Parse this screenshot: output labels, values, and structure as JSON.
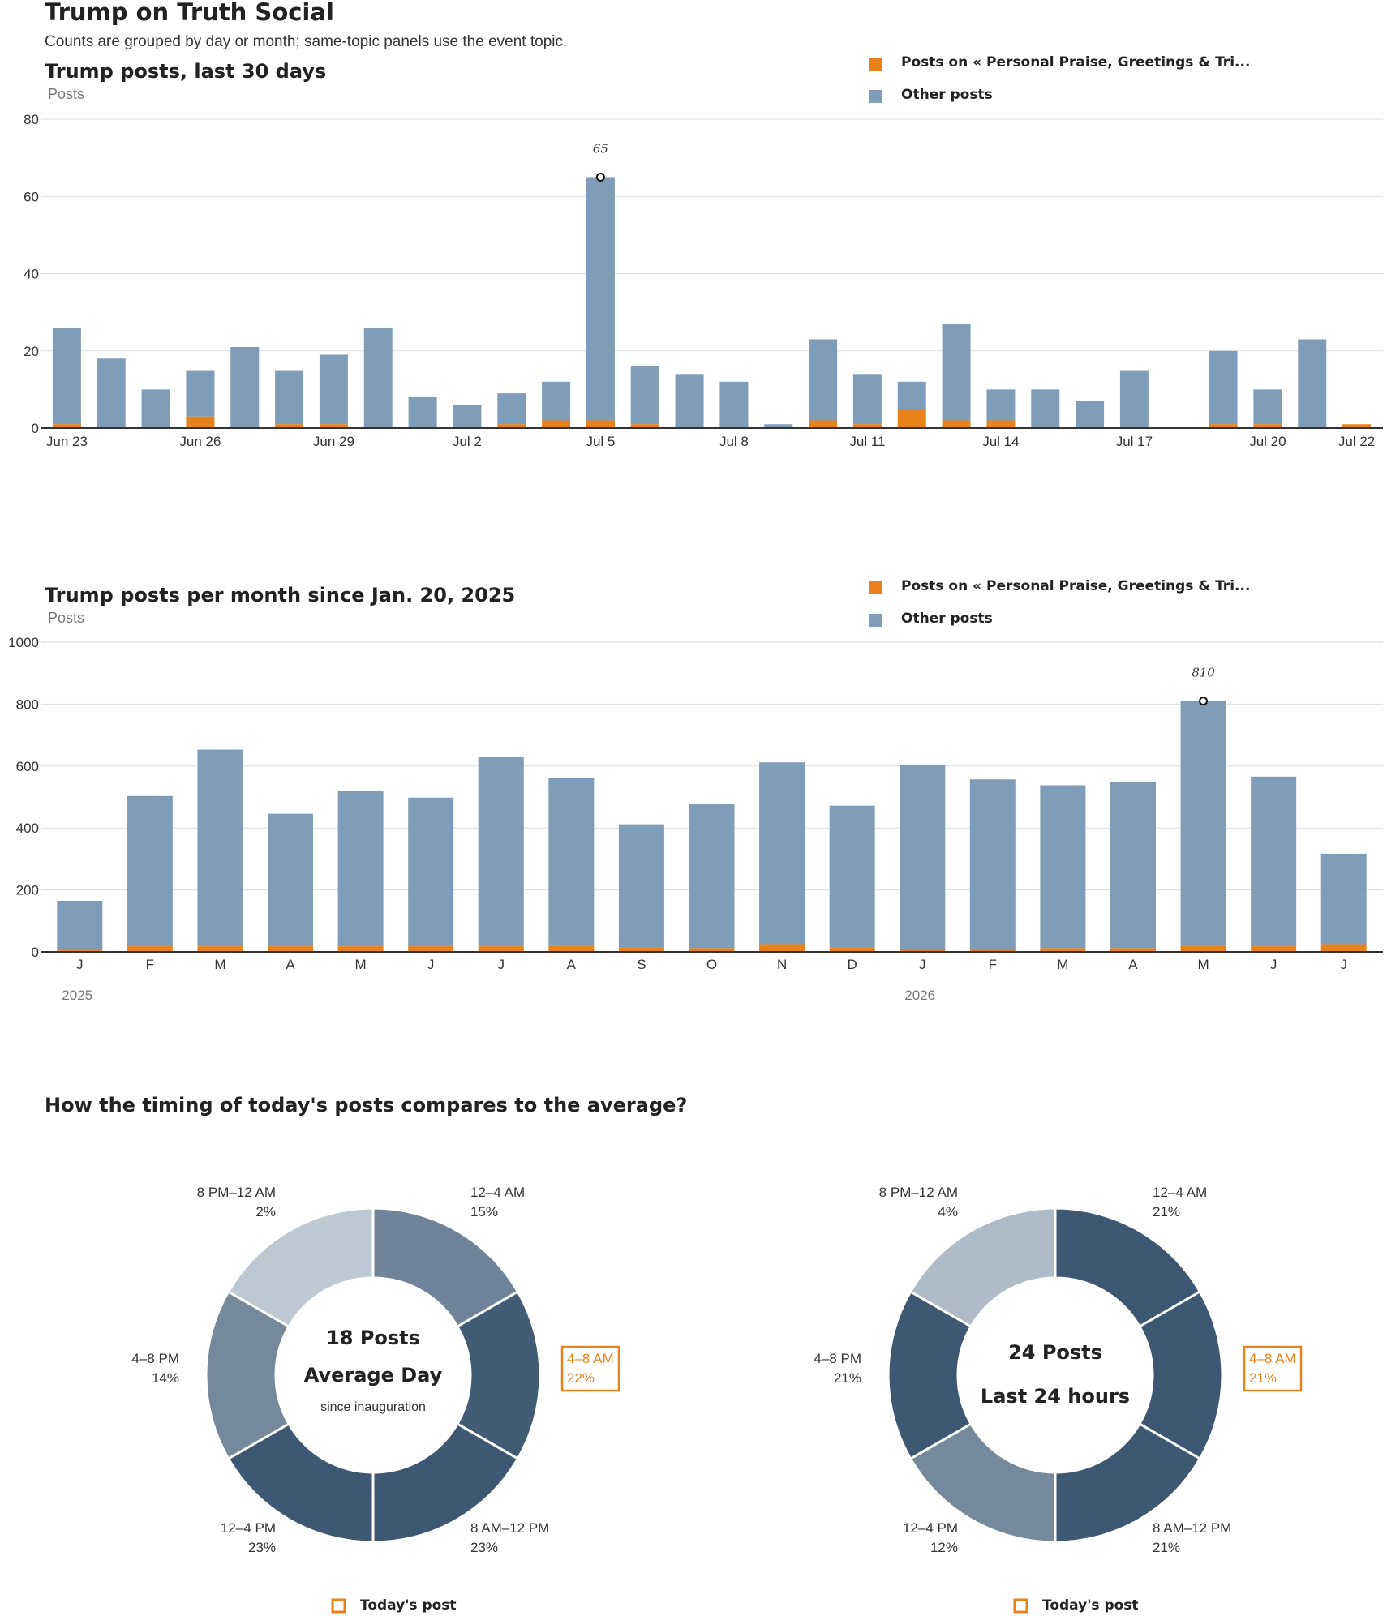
{
  "page": {
    "title": "Trump on Truth Social",
    "subtitle": "Counts are grouped by day or month; same-topic panels use the event topic."
  },
  "colors": {
    "topic": "#e8821b",
    "other": "#7f9db9",
    "text": "#222222",
    "highlight": "#e8821b"
  },
  "chart_data": [
    {
      "type": "bar",
      "stacked": true,
      "title": "Trump posts, last 30 days",
      "ylabel": "Posts",
      "ylim": [
        0,
        80
      ],
      "yticks": [
        0,
        20,
        40,
        60,
        80
      ],
      "grid": true,
      "legend": [
        "Posts on « Personal Praise, Greetings & Tri...",
        "Other posts"
      ],
      "legend_position": "top-right",
      "categories": [
        "Jun 23",
        "Jun 24",
        "Jun 25",
        "Jun 26",
        "Jun 27",
        "Jun 28",
        "Jun 29",
        "Jun 30",
        "Jul 1",
        "Jul 2",
        "Jul 3",
        "Jul 4",
        "Jul 5",
        "Jul 6",
        "Jul 7",
        "Jul 8",
        "Jul 9",
        "Jul 10",
        "Jul 11",
        "Jul 12",
        "Jul 13",
        "Jul 14",
        "Jul 15",
        "Jul 16",
        "Jul 17",
        "Jul 18",
        "Jul 19",
        "Jul 20",
        "Jul 21",
        "Jul 22"
      ],
      "xtick_labels": [
        {
          "index": 0,
          "label": "Jun 23"
        },
        {
          "index": 3,
          "label": "Jun 26"
        },
        {
          "index": 6,
          "label": "Jun 29"
        },
        {
          "index": 9,
          "label": "Jul 2"
        },
        {
          "index": 12,
          "label": "Jul 5"
        },
        {
          "index": 15,
          "label": "Jul 8"
        },
        {
          "index": 18,
          "label": "Jul 11"
        },
        {
          "index": 21,
          "label": "Jul 14"
        },
        {
          "index": 24,
          "label": "Jul 17"
        },
        {
          "index": 27,
          "label": "Jul 20"
        },
        {
          "index": 29,
          "label": "Jul 22"
        }
      ],
      "series": [
        {
          "name": "Posts on « Personal Praise, Greetings & Tri...",
          "values": [
            1,
            0,
            0,
            3,
            0,
            1,
            1,
            0,
            0,
            0,
            1,
            2,
            2,
            1,
            0,
            0,
            0,
            2,
            1,
            5,
            2,
            2,
            0,
            0,
            0,
            0,
            1,
            1,
            0,
            1
          ]
        },
        {
          "name": "Other posts",
          "values": [
            25,
            18,
            10,
            12,
            21,
            14,
            18,
            26,
            8,
            6,
            8,
            10,
            63,
            15,
            14,
            12,
            1,
            21,
            13,
            7,
            25,
            8,
            10,
            7,
            15,
            0,
            19,
            9,
            23,
            0
          ]
        }
      ],
      "annotation": {
        "index": 12,
        "label": "65",
        "value": 65
      }
    },
    {
      "type": "bar",
      "stacked": true,
      "title": "Trump posts per month since Jan. 20, 2025",
      "ylabel": "Posts",
      "ylim": [
        0,
        1000
      ],
      "yticks": [
        0,
        200,
        400,
        600,
        800,
        1000
      ],
      "grid": true,
      "legend": [
        "Posts on « Personal Praise, Greetings & Tri...",
        "Other posts"
      ],
      "legend_position": "top-right",
      "categories": [
        "J",
        "F",
        "M",
        "A",
        "M",
        "J",
        "J",
        "A",
        "S",
        "O",
        "N",
        "D",
        "J",
        "F",
        "M",
        "A",
        "M",
        "J",
        "J"
      ],
      "year_labels": [
        {
          "index": 0,
          "label": "2025"
        },
        {
          "index": 12,
          "label": "2026"
        }
      ],
      "series": [
        {
          "name": "Posts on « Personal Praise, Greetings & Tri...",
          "values": [
            5,
            18,
            18,
            18,
            18,
            18,
            18,
            20,
            15,
            12,
            25,
            15,
            8,
            10,
            12,
            12,
            20,
            18,
            25
          ]
        },
        {
          "name": "Other posts",
          "values": [
            160,
            485,
            635,
            428,
            502,
            480,
            612,
            542,
            397,
            466,
            587,
            457,
            597,
            547,
            526,
            537,
            790,
            548,
            292
          ]
        }
      ],
      "annotation": {
        "index": 16,
        "label": "810",
        "value": 810
      }
    },
    {
      "type": "pie",
      "donut": true,
      "title": "How the timing of today's posts compares to the average?",
      "center": {
        "line1": "18 Posts",
        "line2": "Average Day",
        "line3": "since inauguration"
      },
      "slices": [
        {
          "label": "12–4 AM",
          "pct": "15%",
          "color": "#6f8499"
        },
        {
          "label": "4–8 AM",
          "pct": "22%",
          "color": "#435c75",
          "highlight": true
        },
        {
          "label": "8 AM–12 PM",
          "pct": "23%",
          "color": "#3e5873"
        },
        {
          "label": "12–4 PM",
          "pct": "23%",
          "color": "#3e5873"
        },
        {
          "label": "4–8 PM",
          "pct": "14%",
          "color": "#748a9c"
        },
        {
          "label": "8 PM–12 AM",
          "pct": "2%",
          "color": "#bcc8d3"
        }
      ],
      "legend": "Today's post"
    },
    {
      "type": "pie",
      "donut": true,
      "center": {
        "line1": "24 Posts",
        "line2": "Last 24 hours"
      },
      "slices": [
        {
          "label": "12–4 AM",
          "pct": "21%",
          "color": "#3e5873"
        },
        {
          "label": "4–8 AM",
          "pct": "21%",
          "color": "#3e5873",
          "highlight": true
        },
        {
          "label": "8 AM–12 PM",
          "pct": "21%",
          "color": "#3e5873"
        },
        {
          "label": "12–4 PM",
          "pct": "12%",
          "color": "#748a9c"
        },
        {
          "label": "4–8 PM",
          "pct": "21%",
          "color": "#3e5873"
        },
        {
          "label": "8 PM–12 AM",
          "pct": "4%",
          "color": "#adbcc8"
        }
      ],
      "legend": "Today's post"
    }
  ]
}
